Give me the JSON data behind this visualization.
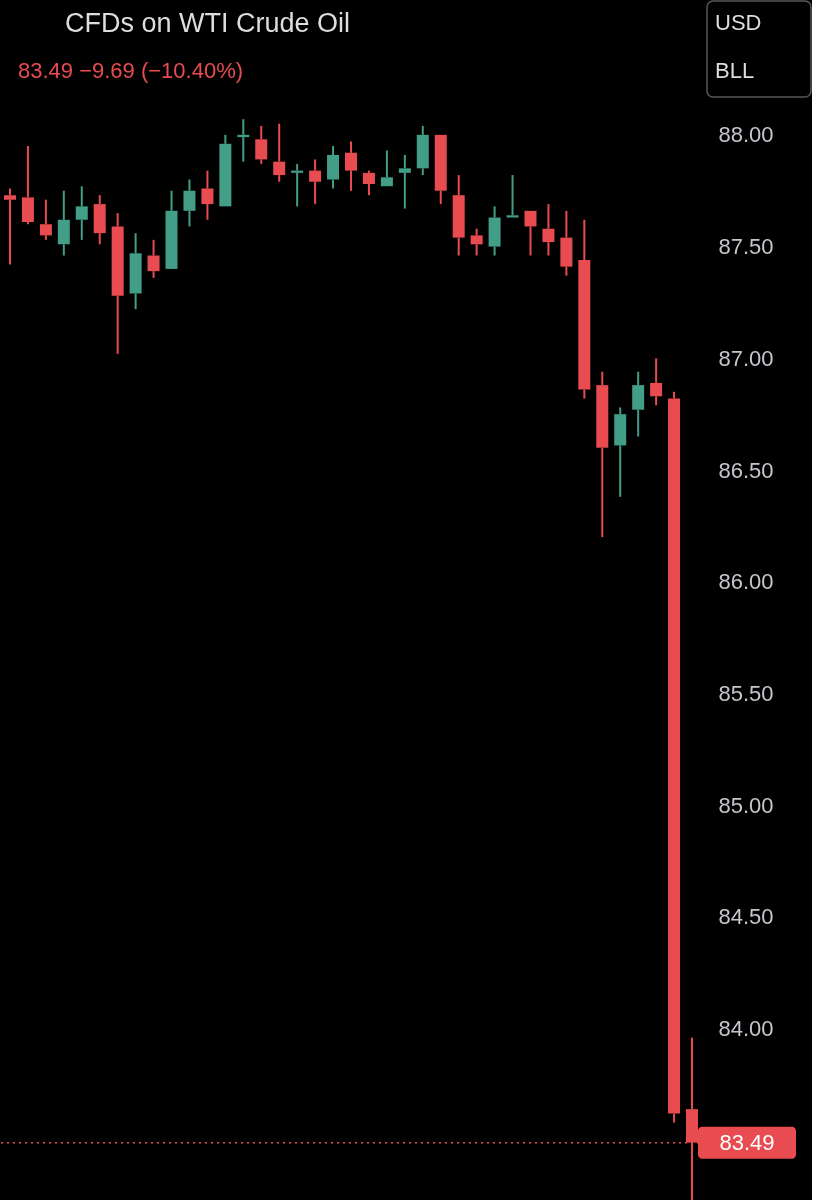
{
  "chart_data": {
    "type": "candlestick",
    "title": "CFDs on WTI Crude Oil",
    "subtitle": "83.49 −9.69 (−10.40%)",
    "categories": [
      null,
      null,
      null,
      null,
      null,
      null,
      null,
      null,
      null,
      null,
      null,
      null,
      null,
      null,
      null,
      null,
      null,
      null,
      null,
      null,
      null,
      null,
      null,
      null,
      null,
      null,
      null,
      null,
      null,
      null,
      null,
      null,
      null,
      null,
      null,
      null,
      null,
      null,
      null
    ],
    "ohlc": [
      [
        87.73,
        87.76,
        87.42,
        87.71
      ],
      [
        87.72,
        87.95,
        87.6,
        87.61
      ],
      [
        87.6,
        87.71,
        87.53,
        87.55
      ],
      [
        87.51,
        87.75,
        87.46,
        87.62
      ],
      [
        87.62,
        87.77,
        87.53,
        87.68
      ],
      [
        87.69,
        87.73,
        87.51,
        87.56
      ],
      [
        87.59,
        87.65,
        87.02,
        87.28
      ],
      [
        87.29,
        87.56,
        87.22,
        87.47
      ],
      [
        87.46,
        87.53,
        87.36,
        87.39
      ],
      [
        87.4,
        87.75,
        87.4,
        87.66
      ],
      [
        87.66,
        87.8,
        87.59,
        87.75
      ],
      [
        87.76,
        87.84,
        87.62,
        87.69
      ],
      [
        87.68,
        88.0,
        87.68,
        87.96
      ],
      [
        87.99,
        88.07,
        87.88,
        88.0
      ],
      [
        87.98,
        88.04,
        87.87,
        87.89
      ],
      [
        87.88,
        88.05,
        87.79,
        87.82
      ],
      [
        87.83,
        87.87,
        87.68,
        87.84
      ],
      [
        87.84,
        87.89,
        87.69,
        87.79
      ],
      [
        87.8,
        87.95,
        87.76,
        87.91
      ],
      [
        87.92,
        87.97,
        87.75,
        87.84
      ],
      [
        87.83,
        87.84,
        87.73,
        87.78
      ],
      [
        87.77,
        87.93,
        87.77,
        87.81
      ],
      [
        87.83,
        87.91,
        87.67,
        87.85
      ],
      [
        87.85,
        88.04,
        87.82,
        88.0
      ],
      [
        88.0,
        88.0,
        87.69,
        87.75
      ],
      [
        87.73,
        87.82,
        87.46,
        87.54
      ],
      [
        87.55,
        87.58,
        87.46,
        87.51
      ],
      [
        87.5,
        87.68,
        87.46,
        87.63
      ],
      [
        87.63,
        87.82,
        87.63,
        87.64
      ],
      [
        87.66,
        87.66,
        87.46,
        87.59
      ],
      [
        87.58,
        87.69,
        87.46,
        87.52
      ],
      [
        87.54,
        87.66,
        87.37,
        87.41
      ],
      [
        87.44,
        87.62,
        86.82,
        86.86
      ],
      [
        86.88,
        86.94,
        86.2,
        86.6
      ],
      [
        86.61,
        86.78,
        86.38,
        86.75
      ],
      [
        86.77,
        86.94,
        86.65,
        86.88
      ],
      [
        86.89,
        87.0,
        86.79,
        86.83
      ],
      [
        86.82,
        86.85,
        83.58,
        83.62
      ],
      [
        83.64,
        83.96,
        83.23,
        83.49
      ]
    ],
    "colors": [
      "#e84c51",
      "#e84c51",
      "#e84c51",
      "#429e87",
      "#429e87",
      "#e84c51",
      "#e84c51",
      "#429e87",
      "#e84c51",
      "#429e87",
      "#429e87",
      "#e84c51",
      "#429e87",
      "#429e87",
      "#e84c51",
      "#e84c51",
      "#429e87",
      "#e84c51",
      "#429e87",
      "#e84c51",
      "#e84c51",
      "#429e87",
      "#429e87",
      "#429e87",
      "#e84c51",
      "#e84c51",
      "#e84c51",
      "#429e87",
      "#429e87",
      "#e84c51",
      "#e84c51",
      "#e84c51",
      "#e84c51",
      "#e84c51",
      "#429e87",
      "#429e87",
      "#e84c51",
      "#e84c51",
      "#e84c51"
    ],
    "ylim": [
      83.22,
      88.59
    ],
    "yticks": [
      {
        "value": 84,
        "label": "84.00"
      },
      {
        "value": 84.5,
        "label": "84.50"
      },
      {
        "value": 85,
        "label": "85.00"
      },
      {
        "value": 85.5,
        "label": "85.50"
      },
      {
        "value": 86,
        "label": "86.00"
      },
      {
        "value": 86.5,
        "label": "86.50"
      },
      {
        "value": 87,
        "label": "87.00"
      },
      {
        "value": 87.5,
        "label": "87.50"
      },
      {
        "value": 88,
        "label": "88.00"
      }
    ],
    "tick_labels": "y",
    "grid": false,
    "ref_lines": [
      {
        "axis": "y",
        "value": 83.49,
        "label": "83.49",
        "color": "#e84c51",
        "line_style": "dotted"
      }
    ],
    "annotations": [
      "USD",
      "BLL"
    ]
  }
}
